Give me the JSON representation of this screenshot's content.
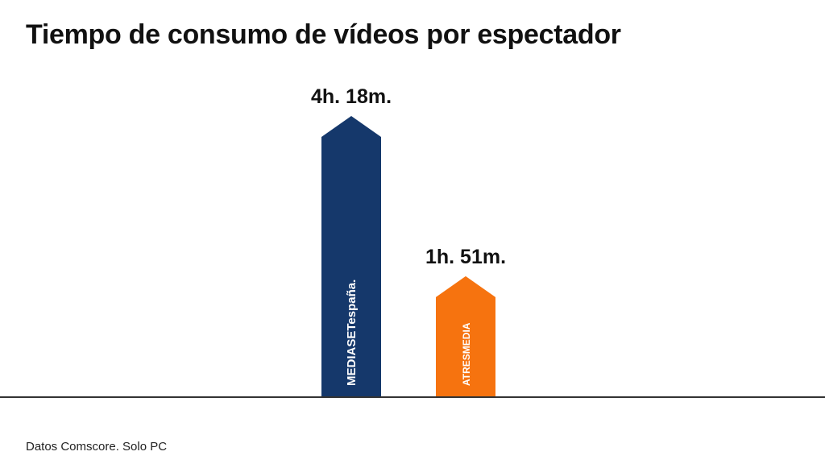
{
  "title": "Tiempo de consumo de vídeos por espectador",
  "footnote": "Datos Comscore. Solo PC",
  "colors": {
    "mediaset": "#15386b",
    "atresmedia": "#f6730f",
    "axis": "#333333"
  },
  "chart_data": {
    "type": "bar",
    "title": "Tiempo de consumo de vídeos por espectador",
    "categories": [
      "MEDIASETespaña.",
      "ATRESMEDIA"
    ],
    "values": [
      258,
      111
    ],
    "value_unit": "minutes",
    "labels": [
      "4h. 18m.",
      "1h. 51m."
    ],
    "bar_colors": [
      "#15386b",
      "#f6730f"
    ],
    "bar_text": [
      "MEDIASETespaña.",
      "ATRESMEDIA"
    ],
    "xlabel": "",
    "ylabel": "",
    "ylim": [
      0,
      280
    ],
    "grid": false,
    "legend": "none"
  }
}
